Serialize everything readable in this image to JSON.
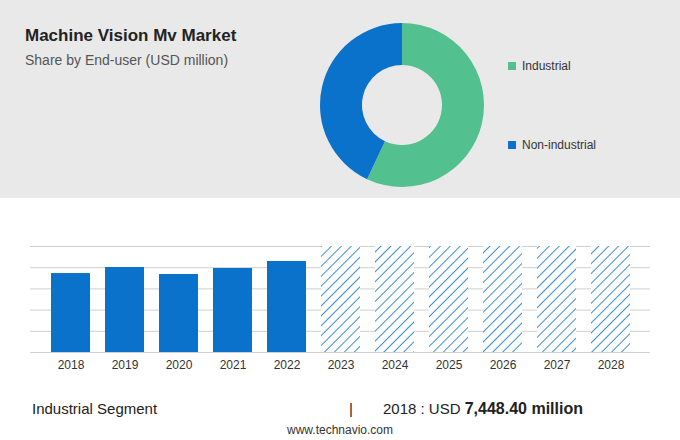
{
  "chart_data": [
    {
      "type": "pie",
      "title": "Machine Vision Mv Market",
      "subtitle": "Share by End-user (USD million)",
      "categories": [
        "Industrial",
        "Non-industrial"
      ],
      "values": [
        57,
        43
      ],
      "colors": [
        "#52c08f",
        "#0b72cc"
      ],
      "legend": "right"
    },
    {
      "type": "bar",
      "categories": [
        "2018",
        "2019",
        "2020",
        "2021",
        "2022",
        "2023",
        "2024",
        "2025",
        "2026",
        "2027",
        "2028"
      ],
      "series": [
        {
          "color": "#0b72cc",
          "values": [
            7448.4,
            8020,
            7360,
            7925,
            8585,
            null,
            null,
            null,
            null,
            null,
            null
          ]
        },
        {
          "color": "#0b72cc",
          "line_style": "hatched",
          "values": [
            null,
            null,
            null,
            null,
            null,
            10000,
            10000,
            10000,
            10000,
            10000,
            10000
          ]
        }
      ],
      "ylim": [
        0,
        10000
      ],
      "yticks": [
        0,
        2000,
        4000,
        6000,
        8000,
        10000
      ],
      "grid": true,
      "tick_labels": "x",
      "annotations": {
        "label": "Industrial Segment",
        "separator": "|",
        "prefix": "2018 : USD",
        "value": "7,448.40 million"
      },
      "source": "www.technavio.com"
    }
  ]
}
